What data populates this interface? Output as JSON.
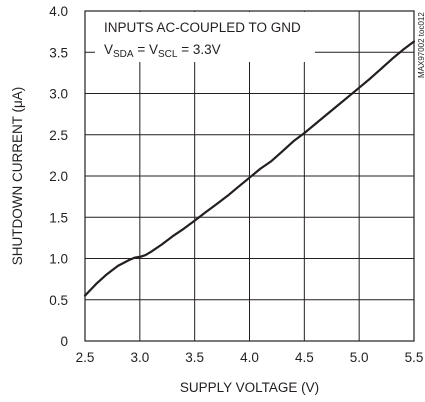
{
  "chart_data": {
    "type": "line",
    "xlabel": "SUPPLY VOLTAGE (V)",
    "ylabel": "SHUTDOWN CURRENT (μA)",
    "chart_id": "MAX97002 toc012",
    "xlim": [
      2.5,
      5.5
    ],
    "ylim": [
      0,
      4.0
    ],
    "x_ticks": [
      "2.5",
      "3.0",
      "3.5",
      "4.0",
      "4.5",
      "5.0",
      "5.5"
    ],
    "y_ticks": [
      "0",
      "0.5",
      "1.0",
      "1.5",
      "2.0",
      "2.5",
      "3.0",
      "3.5",
      "4.0"
    ],
    "grid": true,
    "annotations": {
      "line1": "INPUTS AC-COUPLED TO GND",
      "line2": {
        "v1": "V",
        "v1_sub": "SDA",
        "eq1": " = ",
        "v2": "V",
        "v2_sub": "SCL",
        "eq2": " = 3.3V"
      }
    },
    "series": [
      {
        "x": [
          2.5,
          2.6,
          2.7,
          2.8,
          2.9,
          2.95,
          3.0,
          3.05,
          3.1,
          3.2,
          3.3,
          3.4,
          3.5,
          3.6,
          3.7,
          3.8,
          3.9,
          4.0,
          4.1,
          4.2,
          4.3,
          4.4,
          4.5,
          4.6,
          4.7,
          4.8,
          4.9,
          5.0,
          5.1,
          5.2,
          5.3,
          5.4,
          5.5
        ],
        "y": [
          0.55,
          0.69,
          0.81,
          0.91,
          0.98,
          1.01,
          1.02,
          1.04,
          1.08,
          1.17,
          1.27,
          1.36,
          1.46,
          1.56,
          1.66,
          1.76,
          1.87,
          1.98,
          2.09,
          2.18,
          2.3,
          2.42,
          2.52,
          2.63,
          2.74,
          2.85,
          2.96,
          3.07,
          3.18,
          3.3,
          3.42,
          3.53,
          3.63
        ]
      }
    ]
  }
}
